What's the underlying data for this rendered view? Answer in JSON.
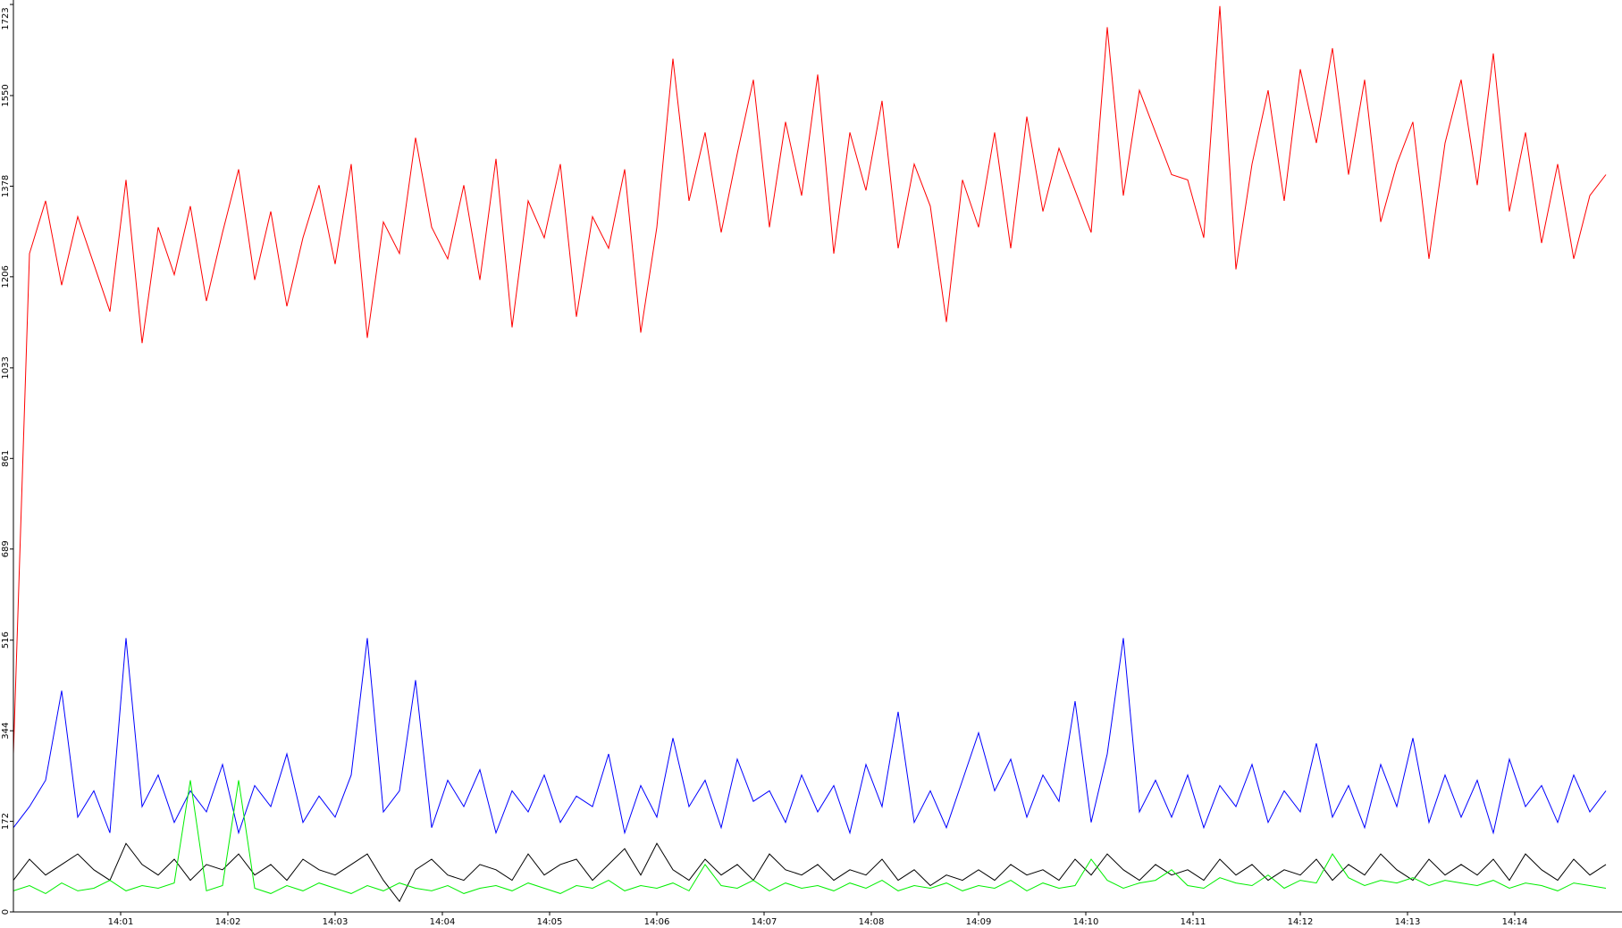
{
  "chart_data": {
    "type": "line",
    "x": [
      0,
      0.15,
      0.3,
      0.45,
      0.6,
      0.75,
      0.9,
      1.05,
      1.2,
      1.35,
      1.5,
      1.65,
      1.8,
      1.95,
      2.1,
      2.25,
      2.4,
      2.55,
      2.7,
      2.85,
      3,
      3.15,
      3.3,
      3.45,
      3.6,
      3.75,
      3.9,
      4.05,
      4.2,
      4.35,
      4.5,
      4.65,
      4.8,
      4.95,
      5.1,
      5.25,
      5.4,
      5.55,
      5.7,
      5.85,
      6,
      6.15,
      6.3,
      6.45,
      6.6,
      6.75,
      6.9,
      7.05,
      7.2,
      7.35,
      7.5,
      7.65,
      7.8,
      7.95,
      8.1,
      8.25,
      8.4,
      8.55,
      8.7,
      8.85,
      9,
      9.15,
      9.3,
      9.45,
      9.6,
      9.75,
      9.9,
      10.05,
      10.2,
      10.35,
      10.5,
      10.65,
      10.8,
      10.95,
      11.1,
      11.25,
      11.4,
      11.55,
      11.7,
      11.85,
      12,
      12.15,
      12.3,
      12.45,
      12.6,
      12.75,
      12.9,
      13.05,
      13.2,
      13.35,
      13.5,
      13.65,
      13.8,
      13.95,
      14.1,
      14.25,
      14.4,
      14.55,
      14.7,
      14.85
    ],
    "series": [
      {
        "color": "#ff0000",
        "values": [
          300,
          1250,
          1350,
          1190,
          1320,
          1230,
          1140,
          1390,
          1080,
          1300,
          1210,
          1340,
          1160,
          1290,
          1410,
          1200,
          1330,
          1150,
          1280,
          1380,
          1230,
          1420,
          1090,
          1310,
          1250,
          1470,
          1300,
          1240,
          1380,
          1200,
          1430,
          1110,
          1350,
          1280,
          1420,
          1130,
          1320,
          1260,
          1410,
          1100,
          1300,
          1620,
          1350,
          1480,
          1290,
          1440,
          1580,
          1300,
          1500,
          1360,
          1590,
          1250,
          1480,
          1370,
          1540,
          1260,
          1420,
          1340,
          1120,
          1390,
          1300,
          1480,
          1260,
          1510,
          1330,
          1450,
          1370,
          1290,
          1680,
          1360,
          1560,
          1480,
          1400,
          1390,
          1280,
          1720,
          1220,
          1420,
          1560,
          1350,
          1600,
          1460,
          1640,
          1400,
          1580,
          1310,
          1420,
          1500,
          1240,
          1460,
          1580,
          1380,
          1630,
          1330,
          1480,
          1270,
          1420,
          1240,
          1360,
          1400
        ]
      },
      {
        "color": "#0000ff",
        "values": [
          160,
          200,
          250,
          420,
          180,
          230,
          150,
          520,
          200,
          260,
          170,
          230,
          190,
          280,
          150,
          240,
          200,
          300,
          170,
          220,
          180,
          260,
          520,
          190,
          230,
          440,
          160,
          250,
          200,
          270,
          150,
          230,
          190,
          260,
          170,
          220,
          200,
          300,
          150,
          240,
          180,
          330,
          200,
          250,
          160,
          290,
          210,
          230,
          170,
          260,
          190,
          240,
          150,
          280,
          200,
          380,
          170,
          230,
          160,
          250,
          340,
          230,
          290,
          180,
          260,
          210,
          400,
          170,
          300,
          520,
          190,
          250,
          180,
          260,
          160,
          240,
          200,
          280,
          170,
          230,
          190,
          320,
          180,
          240,
          160,
          280,
          200,
          330,
          170,
          260,
          180,
          250,
          150,
          290,
          200,
          240,
          170,
          260,
          190,
          230
        ]
      },
      {
        "color": "#000000",
        "values": [
          60,
          100,
          70,
          90,
          110,
          80,
          60,
          130,
          90,
          70,
          100,
          60,
          90,
          80,
          110,
          70,
          90,
          60,
          100,
          80,
          70,
          90,
          110,
          60,
          20,
          80,
          100,
          70,
          60,
          90,
          80,
          60,
          110,
          70,
          90,
          100,
          60,
          90,
          120,
          70,
          130,
          80,
          60,
          100,
          70,
          90,
          60,
          110,
          80,
          70,
          90,
          60,
          80,
          70,
          100,
          60,
          80,
          50,
          70,
          60,
          80,
          60,
          90,
          70,
          80,
          60,
          100,
          70,
          110,
          80,
          60,
          90,
          70,
          80,
          60,
          100,
          70,
          90,
          60,
          80,
          70,
          100,
          60,
          90,
          70,
          110,
          80,
          60,
          100,
          70,
          90,
          70,
          100,
          60,
          110,
          80,
          60,
          100,
          70,
          90
        ]
      },
      {
        "color": "#00ee00",
        "values": [
          40,
          50,
          35,
          55,
          40,
          45,
          60,
          40,
          50,
          45,
          55,
          250,
          40,
          50,
          250,
          45,
          35,
          50,
          40,
          55,
          45,
          35,
          50,
          40,
          55,
          45,
          40,
          50,
          35,
          45,
          50,
          40,
          55,
          45,
          35,
          50,
          45,
          60,
          40,
          50,
          45,
          55,
          40,
          90,
          50,
          45,
          60,
          40,
          55,
          45,
          50,
          40,
          55,
          45,
          60,
          40,
          50,
          45,
          55,
          40,
          50,
          45,
          60,
          40,
          55,
          45,
          50,
          100,
          60,
          45,
          55,
          60,
          80,
          50,
          45,
          65,
          55,
          50,
          70,
          45,
          60,
          55,
          110,
          65,
          50,
          60,
          55,
          65,
          50,
          60,
          55,
          50,
          60,
          45,
          55,
          50,
          40,
          55,
          50,
          45
        ]
      }
    ],
    "xlim": [
      0,
      15
    ],
    "xticks": [
      {
        "value": 1,
        "label": "14:01"
      },
      {
        "value": 2,
        "label": "14:02"
      },
      {
        "value": 3,
        "label": "14:03"
      },
      {
        "value": 4,
        "label": "14:04"
      },
      {
        "value": 5,
        "label": "14:05"
      },
      {
        "value": 6,
        "label": "14:06"
      },
      {
        "value": 7,
        "label": "14:07"
      },
      {
        "value": 8,
        "label": "14:08"
      },
      {
        "value": 9,
        "label": "14:09"
      },
      {
        "value": 10,
        "label": "14:10"
      },
      {
        "value": 11,
        "label": "14:11"
      },
      {
        "value": 12,
        "label": "14:12"
      },
      {
        "value": 13,
        "label": "14:13"
      },
      {
        "value": 14,
        "label": "14:14"
      }
    ],
    "ylim": [
      0,
      1723
    ],
    "yticks": [
      0,
      172,
      344,
      516,
      689,
      861,
      1033,
      1206,
      1378,
      1550,
      1723
    ]
  }
}
